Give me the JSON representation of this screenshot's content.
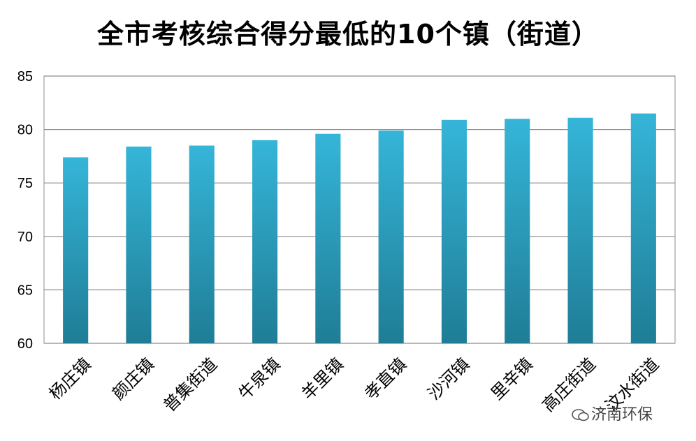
{
  "chart_data": {
    "type": "bar",
    "title": "全市考核综合得分最低的10个镇（街道）",
    "categories": [
      "杨庄镇",
      "颜庄镇",
      "普集街道",
      "牛泉镇",
      "羊里镇",
      "孝直镇",
      "沙河镇",
      "里辛镇",
      "高庄街道",
      "汶水街道"
    ],
    "series": [
      {
        "values": [
          77.4,
          78.4,
          78.5,
          79.0,
          79.6,
          79.9,
          80.9,
          81.0,
          81.1,
          81.5
        ]
      }
    ],
    "ylim": [
      60,
      85
    ],
    "yticks": [
      "60",
      "65",
      "70",
      "75",
      "80",
      "85"
    ],
    "ytick_values": [
      60,
      65,
      70,
      75,
      80,
      85
    ],
    "grid": true,
    "bar_color_top": "#35b5d8",
    "bar_color_bottom": "#1f7d96"
  },
  "watermark": {
    "text": "济南环保",
    "icon": "wechat-bubble-icon"
  }
}
